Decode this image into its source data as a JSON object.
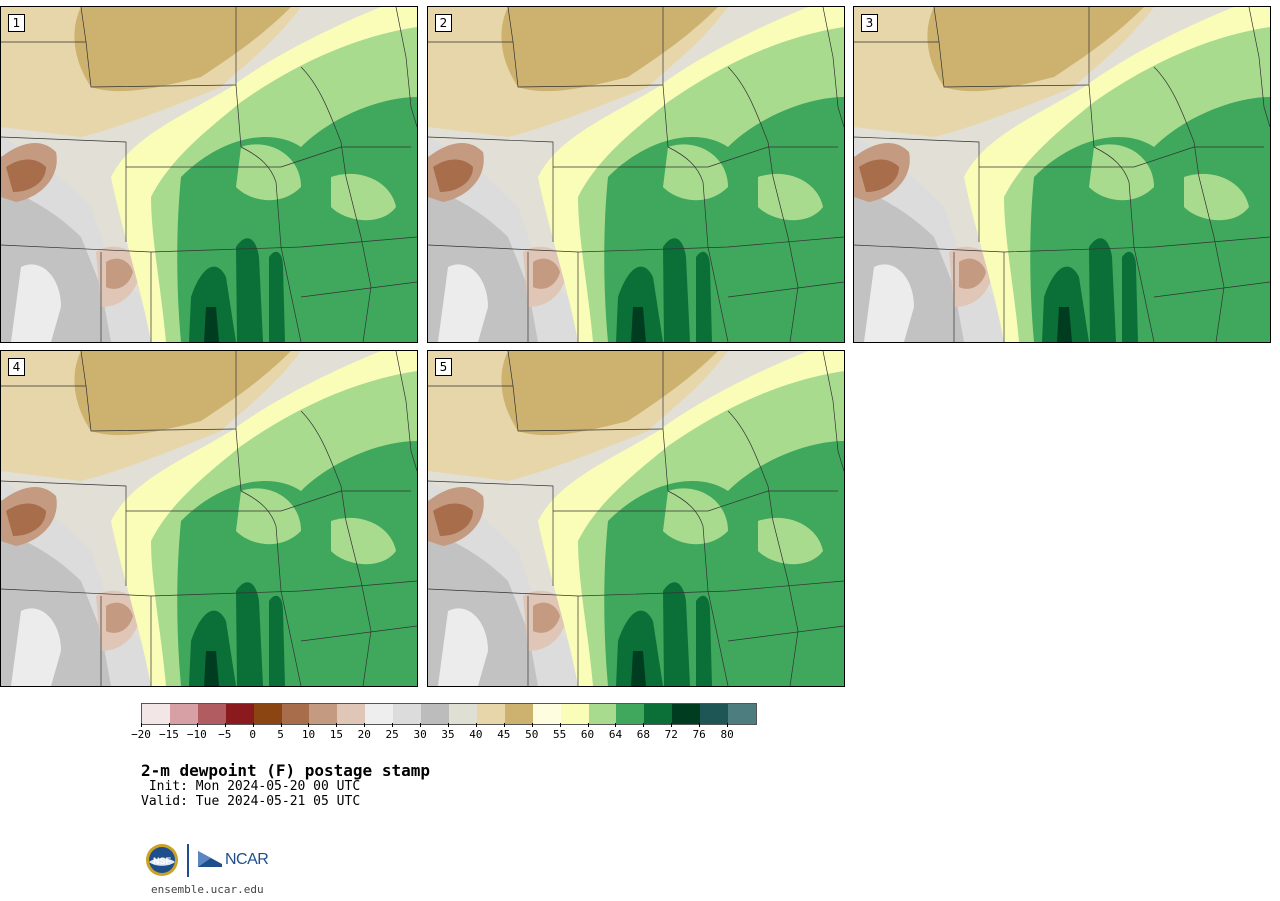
{
  "panels": [
    {
      "label": "1"
    },
    {
      "label": "2"
    },
    {
      "label": "3"
    },
    {
      "label": "4"
    },
    {
      "label": "5"
    }
  ],
  "colorbar": {
    "colors": [
      "#f3e6e6",
      "#d7a0a5",
      "#b15c60",
      "#8b1a1f",
      "#8a4513",
      "#a86d4a",
      "#c49a80",
      "#e0c6b6",
      "#eeeeee",
      "#dcdcdc",
      "#bcbcbc",
      "#e0dfd3",
      "#e6d6a9",
      "#cdb26f",
      "#fffde0",
      "#fafdb8",
      "#a9db8f",
      "#3fa85c",
      "#0b7038",
      "#003d20",
      "#1d5655",
      "#4e7d7f"
    ],
    "tick_labels": [
      "−20",
      "−15",
      "−10",
      "−5",
      "0",
      "5",
      "10",
      "15",
      "20",
      "25",
      "30",
      "35",
      "40",
      "45",
      "50",
      "55",
      "60",
      "64",
      "68",
      "72",
      "76",
      "80"
    ]
  },
  "title": "2-m dewpoint (F) postage stamp",
  "init": " Init: Mon 2024-05-20 00 UTC",
  "valid": "Valid: Tue 2024-05-21 05 UTC",
  "logos": {
    "org1": "NSF",
    "org2": "NCAR"
  },
  "site": "ensemble.ucar.edu"
}
